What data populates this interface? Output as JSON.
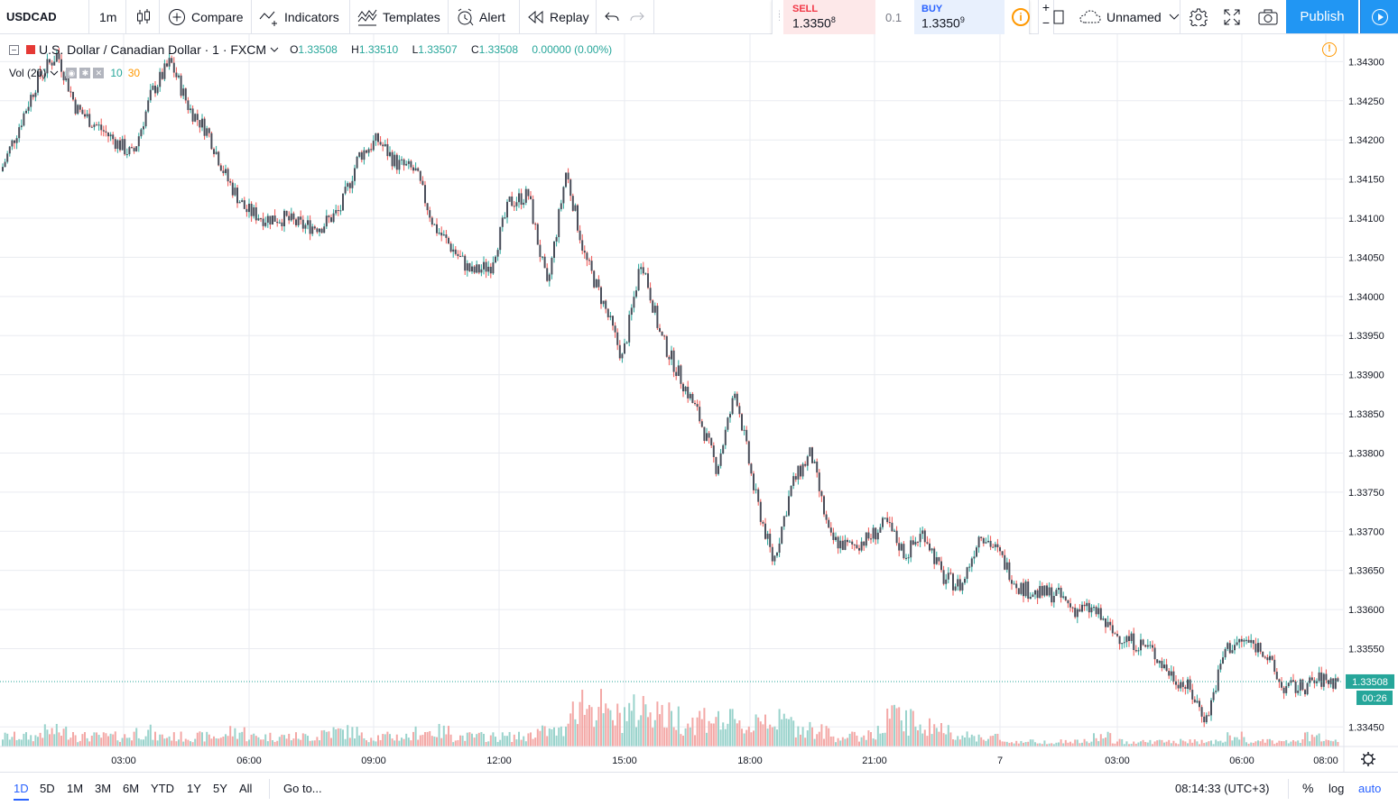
{
  "toolbar": {
    "symbol": "USDCAD",
    "timeframe": "1m",
    "compare": "Compare",
    "indicators": "Indicators",
    "templates": "Templates",
    "alert": "Alert",
    "replay": "Replay",
    "layout_name": "Unnamed",
    "publish": "Publish"
  },
  "trade": {
    "sell_label": "SELL",
    "sell_price": "1.3350",
    "sell_sup": "8",
    "qty": "0.1",
    "buy_label": "BUY",
    "buy_price": "1.3350",
    "buy_sup": "9",
    "plus": "+",
    "minus": "−"
  },
  "legend": {
    "title": "U.S. Dollar / Canadian Dollar · 1 · FXCM",
    "open_key": "O",
    "open": "1.33508",
    "high_key": "H",
    "high": "1.33510",
    "low_key": "L",
    "low": "1.33507",
    "close_key": "C",
    "close": "1.33508",
    "change": "0.00000 (0.00%)",
    "vol_label": "Vol (20)",
    "vol_a": "10",
    "vol_b": "30"
  },
  "chart_data": {
    "type": "line",
    "series_type": "candlestick",
    "y_ticks": [
      "1.34300",
      "1.34250",
      "1.34200",
      "1.34150",
      "1.34100",
      "1.34050",
      "1.34000",
      "1.33950",
      "1.33900",
      "1.33850",
      "1.33800",
      "1.33750",
      "1.33700",
      "1.33650",
      "1.33600",
      "1.33550",
      "1.33450"
    ],
    "ylim": [
      1.33425,
      1.34335
    ],
    "x_ticks": [
      "03:00",
      "06:00",
      "09:00",
      "12:00",
      "15:00",
      "18:00",
      "21:00",
      "7",
      "03:00",
      "06:00",
      "08:00"
    ],
    "last_price": "1.33508",
    "countdown": "00:26",
    "x": [
      0,
      1,
      2,
      3,
      4,
      5,
      6,
      7,
      8,
      9,
      10,
      11,
      12,
      13,
      14,
      15,
      16,
      17,
      18,
      19,
      20,
      21,
      22,
      23,
      24,
      25,
      26,
      27,
      28,
      29,
      30,
      31,
      32,
      33,
      34,
      35,
      36,
      37,
      38,
      39,
      40,
      41,
      42,
      43,
      44,
      45,
      46,
      47,
      48,
      49,
      50,
      51,
      52,
      53,
      54,
      55,
      56,
      57,
      58,
      59,
      60,
      61,
      62,
      63,
      64,
      65,
      66,
      67,
      68,
      69,
      70,
      71
    ],
    "price_path": [
      1.3416,
      1.3422,
      1.3428,
      1.3431,
      1.3424,
      1.3422,
      1.342,
      1.3418,
      1.3426,
      1.343,
      1.3424,
      1.3421,
      1.3415,
      1.3411,
      1.341,
      1.341,
      1.3409,
      1.3409,
      1.3411,
      1.3418,
      1.342,
      1.3417,
      1.3416,
      1.3409,
      1.3406,
      1.3403,
      1.3404,
      1.3412,
      1.3413,
      1.3401,
      1.3416,
      1.3405,
      1.3399,
      1.3392,
      1.3405,
      1.3395,
      1.339,
      1.3385,
      1.3378,
      1.3388,
      1.3375,
      1.3366,
      1.3376,
      1.338,
      1.3369,
      1.3368,
      1.3369,
      1.3371,
      1.3367,
      1.337,
      1.3364,
      1.3363,
      1.337,
      1.3367,
      1.3363,
      1.3362,
      1.3362,
      1.336,
      1.336,
      1.3357,
      1.3356,
      1.3355,
      1.3352,
      1.335,
      1.3346,
      1.3355,
      1.3356,
      1.3355,
      1.335,
      1.335,
      1.3351,
      1.33508
    ],
    "volume_rel": [
      0.2,
      0.2,
      0.3,
      0.3,
      0.2,
      0.2,
      0.2,
      0.3,
      0.2,
      0.2,
      0.2,
      0.2,
      0.3,
      0.2,
      0.2,
      0.2,
      0.2,
      0.3,
      0.3,
      0.2,
      0.2,
      0.2,
      0.3,
      0.3,
      0.2,
      0.2,
      0.2,
      0.2,
      0.3,
      0.3,
      0.9,
      0.8,
      0.6,
      0.7,
      0.8,
      0.6,
      0.5,
      0.6,
      0.5,
      0.4,
      0.6,
      0.5,
      0.4,
      0.3,
      0.2,
      0.2,
      0.3,
      0.6,
      0.5,
      0.4,
      0.3,
      0.2,
      0.2,
      0.1,
      0.1,
      0.1,
      0.1,
      0.1,
      0.2,
      0.1,
      0.1,
      0.1,
      0.1,
      0.1,
      0.1,
      0.2,
      0.1,
      0.1,
      0.1,
      0.2,
      0.1,
      0.1
    ],
    "colors": {
      "up": "#26a69a",
      "down": "#ef5350",
      "candle_body": "#4a4e5a",
      "vol_up": "#9ad3cc",
      "vol_down": "#f3a8a6",
      "grid": "#e9ebf0",
      "last_price": "#26a69a"
    }
  },
  "bottom": {
    "ranges": [
      "1D",
      "5D",
      "1M",
      "3M",
      "6M",
      "YTD",
      "1Y",
      "5Y",
      "All"
    ],
    "goto": "Go to...",
    "clock": "08:14:33 (UTC+3)",
    "percent": "%",
    "log": "log",
    "auto": "auto"
  }
}
